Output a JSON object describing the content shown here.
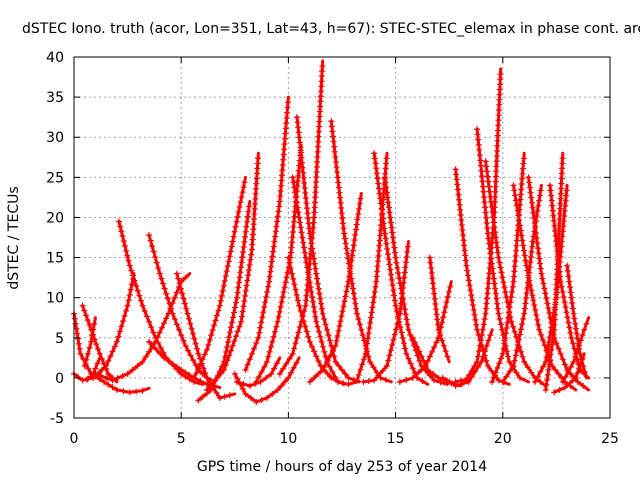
{
  "chart_data": {
    "type": "line",
    "title": "dSTEC Iono. truth (acor, Lon=351, Lat=43, h=67): STEC-STEC_elemax in phase cont. arc",
    "xlabel": "GPS time / hours of day 253 of year 2014",
    "ylabel": "dSTEC  / TECUs",
    "xlim": [
      0,
      25
    ],
    "ylim": [
      -5,
      40
    ],
    "xticks": [
      0,
      5,
      10,
      15,
      20,
      25
    ],
    "yticks": [
      -5,
      0,
      5,
      10,
      15,
      20,
      25,
      30,
      35,
      40
    ],
    "grid": true,
    "legend": "none",
    "series_color": "#ff0000",
    "marker": "plus",
    "series": [
      {
        "x": [
          0.0,
          0.3,
          0.8,
          1.4,
          2.0,
          2.6,
          3.2,
          3.5
        ],
        "y": [
          8.0,
          3.0,
          0.5,
          -0.5,
          -1.5,
          -1.8,
          -1.6,
          -1.3
        ]
      },
      {
        "x": [
          0.0,
          0.4,
          0.9,
          1.5,
          2.0,
          2.5,
          2.8
        ],
        "y": [
          0.5,
          -0.3,
          0.0,
          1.5,
          4.5,
          9.0,
          13.0
        ]
      },
      {
        "x": [
          0.4,
          0.8,
          1.2,
          1.6,
          2.0
        ],
        "y": [
          9.0,
          6.0,
          3.0,
          0.5,
          -0.5
        ]
      },
      {
        "x": [
          0.5,
          0.8,
          1.0
        ],
        "y": [
          1.5,
          4.5,
          7.5
        ]
      },
      {
        "x": [
          0.6,
          0.9,
          1.2
        ],
        "y": [
          -0.2,
          0.5,
          2.5
        ]
      },
      {
        "x": [
          2.1,
          2.6,
          3.2,
          3.8,
          4.3,
          5.0,
          5.6,
          6.0
        ],
        "y": [
          19.5,
          14.0,
          9.0,
          5.0,
          2.5,
          0.5,
          -0.5,
          -0.8
        ]
      },
      {
        "x": [
          1.0,
          1.8,
          2.5,
          3.2,
          3.8,
          4.4,
          5.0,
          5.4
        ],
        "y": [
          0.5,
          -0.3,
          0.5,
          2.0,
          4.5,
          8.0,
          12.0,
          13.0
        ]
      },
      {
        "x": [
          3.5,
          4.0,
          4.6,
          5.2,
          5.8,
          6.2,
          6.4
        ],
        "y": [
          17.8,
          13.0,
          8.0,
          4.0,
          1.0,
          0.0,
          -0.2
        ]
      },
      {
        "x": [
          3.5,
          4.2,
          5.0,
          5.6,
          6.2,
          6.8
        ],
        "y": [
          4.5,
          2.5,
          1.0,
          0.0,
          -0.8,
          -1.2
        ]
      },
      {
        "x": [
          4.8,
          5.3,
          5.8,
          6.2,
          6.8,
          7.5
        ],
        "y": [
          13.0,
          8.0,
          3.0,
          0.0,
          -2.5,
          -2.0
        ]
      },
      {
        "x": [
          5.6,
          6.2,
          6.8,
          7.4,
          8.0
        ],
        "y": [
          0.0,
          3.5,
          9.0,
          17.0,
          25.0
        ]
      },
      {
        "x": [
          5.8,
          6.4,
          7.0,
          7.6,
          8.2
        ],
        "y": [
          -2.8,
          -1.5,
          2.0,
          10.0,
          22.0
        ]
      },
      {
        "x": [
          6.2,
          7.0,
          7.8,
          8.3,
          8.6
        ],
        "y": [
          -1.5,
          1.0,
          7.0,
          16.0,
          28.0
        ]
      },
      {
        "x": [
          7.5,
          8.0,
          8.5,
          9.0,
          9.5,
          10.0,
          10.5
        ],
        "y": [
          0.5,
          -2.0,
          -3.0,
          -2.5,
          -1.5,
          0.0,
          2.5
        ]
      },
      {
        "x": [
          7.6,
          8.2,
          8.7,
          9.2,
          9.6
        ],
        "y": [
          -0.5,
          -1.0,
          -0.5,
          0.5,
          2.5
        ]
      },
      {
        "x": [
          8.0,
          8.6,
          9.1,
          9.6,
          10.0
        ],
        "y": [
          1.0,
          5.0,
          12.0,
          22.0,
          35.0
        ]
      },
      {
        "x": [
          8.5,
          9.0,
          9.5,
          10.1,
          10.6
        ],
        "y": [
          -0.5,
          2.0,
          7.0,
          15.0,
          29.0
        ]
      },
      {
        "x": [
          9.6,
          10.2,
          10.8,
          11.2,
          11.6
        ],
        "y": [
          0.5,
          3.0,
          9.0,
          20.0,
          39.5
        ]
      },
      {
        "x": [
          10.0,
          10.5,
          11.0,
          11.5,
          12.0,
          12.6
        ],
        "y": [
          15.0,
          9.0,
          4.5,
          1.5,
          0.0,
          -0.8
        ]
      },
      {
        "x": [
          10.2,
          10.8,
          11.3,
          11.8,
          12.3,
          12.8,
          13.2
        ],
        "y": [
          25.0,
          15.0,
          7.0,
          2.0,
          -0.5,
          -0.8,
          -0.5
        ]
      },
      {
        "x": [
          10.4,
          11.0,
          11.6,
          12.2,
          12.8,
          13.3
        ],
        "y": [
          32.5,
          18.0,
          8.0,
          2.0,
          0.0,
          -0.5
        ]
      },
      {
        "x": [
          11.0,
          11.6,
          12.2,
          12.8,
          13.4
        ],
        "y": [
          -0.5,
          1.0,
          4.0,
          12.0,
          23.0
        ]
      },
      {
        "x": [
          12.0,
          12.6,
          13.2,
          13.8,
          14.3,
          14.8
        ],
        "y": [
          32.0,
          18.0,
          8.0,
          2.0,
          0.0,
          -0.5
        ]
      },
      {
        "x": [
          13.2,
          13.6,
          14.1,
          14.6
        ],
        "y": [
          -0.3,
          3.0,
          12.0,
          28.0
        ]
      },
      {
        "x": [
          14.0,
          14.5,
          15.0,
          15.5,
          16.0,
          16.5
        ],
        "y": [
          28.0,
          18.0,
          9.0,
          3.0,
          0.0,
          -0.8
        ]
      },
      {
        "x": [
          14.5,
          15.0,
          15.6,
          16.2,
          16.8,
          17.4
        ],
        "y": [
          25.0,
          15.0,
          6.0,
          1.5,
          -0.3,
          -0.8
        ]
      },
      {
        "x": [
          13.5,
          14.0,
          14.6,
          15.2,
          15.6
        ],
        "y": [
          -0.5,
          -0.3,
          1.5,
          8.0,
          17.0
        ]
      },
      {
        "x": [
          15.2,
          15.8,
          16.4,
          17.0,
          17.6
        ],
        "y": [
          -0.5,
          0.0,
          1.5,
          5.0,
          12.0
        ]
      },
      {
        "x": [
          15.8,
          16.5,
          17.0,
          17.5,
          18.0
        ],
        "y": [
          5.0,
          1.0,
          0.0,
          -0.5,
          -1.0
        ]
      },
      {
        "x": [
          16.6,
          17.0,
          17.5
        ],
        "y": [
          15.0,
          6.0,
          2.0
        ]
      },
      {
        "x": [
          17.8,
          18.3,
          18.8,
          19.3,
          19.8,
          20.3
        ],
        "y": [
          26.0,
          14.0,
          6.0,
          1.5,
          -0.3,
          -0.8
        ]
      },
      {
        "x": [
          18.8,
          19.3,
          19.8,
          20.3,
          20.8,
          21.2
        ],
        "y": [
          31.0,
          18.0,
          8.0,
          2.0,
          0.0,
          -0.5
        ]
      },
      {
        "x": [
          17.8,
          18.3,
          18.8,
          19.2,
          19.6,
          19.9
        ],
        "y": [
          -0.5,
          -0.2,
          2.0,
          8.0,
          20.0,
          38.5
        ]
      },
      {
        "x": [
          17.2,
          17.8,
          18.4,
          19.0,
          19.5
        ],
        "y": [
          0.0,
          -1.0,
          -0.5,
          2.0,
          6.0
        ]
      },
      {
        "x": [
          19.2,
          19.8,
          20.4,
          21.0,
          21.5,
          22.0
        ],
        "y": [
          27.0,
          15.0,
          7.0,
          2.0,
          0.0,
          -1.0
        ]
      },
      {
        "x": [
          19.5,
          20.0,
          20.5,
          21.0
        ],
        "y": [
          -0.5,
          3.0,
          12.0,
          28.0
        ]
      },
      {
        "x": [
          20.0,
          20.5,
          21.0,
          21.4,
          21.8
        ],
        "y": [
          -0.5,
          1.5,
          8.0,
          17.0,
          24.0
        ]
      },
      {
        "x": [
          20.5,
          21.1,
          21.7,
          22.3,
          22.9,
          23.4
        ],
        "y": [
          24.0,
          14.0,
          6.0,
          1.5,
          -0.5,
          -1.5
        ]
      },
      {
        "x": [
          21.2,
          21.8,
          22.4,
          23.0,
          23.5,
          24.0
        ],
        "y": [
          25.0,
          13.0,
          5.0,
          1.0,
          -0.5,
          -1.5
        ]
      },
      {
        "x": [
          21.5,
          22.0,
          22.5,
          23.0
        ],
        "y": [
          -0.5,
          2.0,
          10.0,
          24.0
        ]
      },
      {
        "x": [
          22.0,
          22.4,
          22.8
        ],
        "y": [
          -1.5,
          6.0,
          28.0
        ]
      },
      {
        "x": [
          22.2,
          22.7,
          23.2,
          23.6,
          24.0
        ],
        "y": [
          24.0,
          12.0,
          5.0,
          1.0,
          0.0
        ]
      },
      {
        "x": [
          22.8,
          23.3,
          23.8,
          24.0
        ],
        "y": [
          -0.5,
          2.0,
          6.0,
          7.5
        ]
      },
      {
        "x": [
          23.0,
          23.3,
          23.6,
          23.9
        ],
        "y": [
          14.0,
          8.0,
          3.0,
          0.0
        ]
      },
      {
        "x": [
          22.4,
          22.9,
          23.4,
          23.8
        ],
        "y": [
          -1.8,
          -1.2,
          0.0,
          3.0
        ]
      }
    ]
  }
}
